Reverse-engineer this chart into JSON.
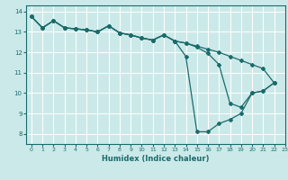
{
  "title": "",
  "xlabel": "Humidex (Indice chaleur)",
  "xlim": [
    -0.5,
    23
  ],
  "ylim": [
    7.5,
    14.3
  ],
  "yticks": [
    8,
    9,
    10,
    11,
    12,
    13,
    14
  ],
  "xticks": [
    0,
    1,
    2,
    3,
    4,
    5,
    6,
    7,
    8,
    9,
    10,
    11,
    12,
    13,
    14,
    15,
    16,
    17,
    18,
    19,
    20,
    21,
    22,
    23
  ],
  "bg_color": "#cce9e9",
  "grid_color": "#ffffff",
  "line_color": "#1a6b6b",
  "lines": [
    {
      "x": [
        0,
        1,
        2,
        3,
        4,
        5,
        6,
        7,
        8,
        9,
        10,
        11,
        12,
        13,
        14,
        15,
        16,
        17,
        18,
        19,
        20,
        21,
        22
      ],
      "y": [
        13.75,
        13.2,
        13.55,
        13.2,
        13.15,
        13.1,
        13.0,
        13.3,
        12.95,
        12.85,
        12.7,
        12.6,
        12.85,
        12.55,
        12.45,
        12.3,
        12.15,
        12.0,
        11.8,
        11.6,
        11.4,
        11.2,
        10.5
      ]
    },
    {
      "x": [
        0,
        1,
        2,
        3,
        4,
        5,
        6,
        7,
        8,
        9,
        10,
        11,
        12,
        13,
        14,
        15,
        16,
        17,
        18,
        19,
        20,
        21,
        22
      ],
      "y": [
        13.75,
        13.2,
        13.55,
        13.2,
        13.15,
        13.1,
        13.0,
        13.3,
        12.95,
        12.85,
        12.7,
        12.6,
        12.85,
        12.55,
        11.8,
        8.1,
        8.1,
        8.5,
        8.7,
        9.0,
        10.0,
        10.1,
        10.5
      ]
    },
    {
      "x": [
        0,
        1,
        2,
        3,
        4,
        5,
        6,
        7,
        8,
        9,
        10,
        11,
        12,
        13,
        14,
        15,
        16,
        17,
        18,
        19,
        20,
        21,
        22
      ],
      "y": [
        13.75,
        13.2,
        13.55,
        13.2,
        13.15,
        13.1,
        13.0,
        13.3,
        12.95,
        12.85,
        12.7,
        12.6,
        12.85,
        12.55,
        12.45,
        12.25,
        11.95,
        11.4,
        9.5,
        9.3,
        10.0,
        10.1,
        10.5
      ]
    }
  ]
}
